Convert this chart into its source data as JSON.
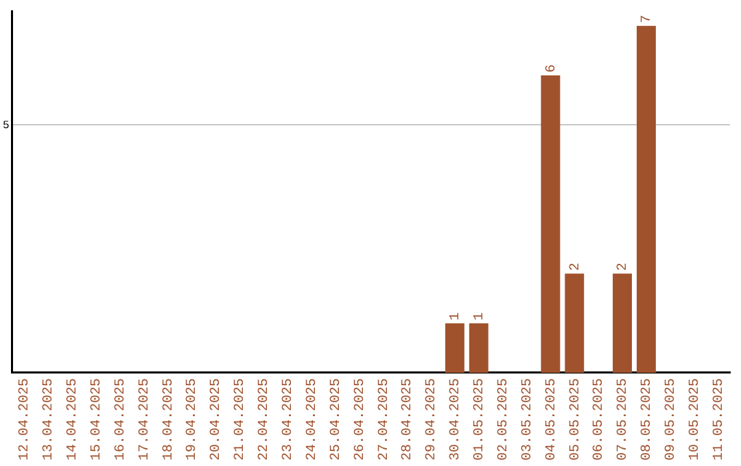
{
  "chart_data": {
    "type": "bar",
    "categories": [
      "12.04.2025",
      "13.04.2025",
      "14.04.2025",
      "15.04.2025",
      "16.04.2025",
      "17.04.2025",
      "18.04.2025",
      "19.04.2025",
      "20.04.2025",
      "21.04.2025",
      "22.04.2025",
      "23.04.2025",
      "24.04.2025",
      "25.04.2025",
      "26.04.2025",
      "27.04.2025",
      "28.04.2025",
      "29.04.2025",
      "30.04.2025",
      "01.05.2025",
      "02.05.2025",
      "03.05.2025",
      "04.05.2025",
      "05.05.2025",
      "06.05.2025",
      "07.05.2025",
      "08.05.2025",
      "09.05.2025",
      "10.05.2025",
      "11.05.2025"
    ],
    "values": [
      null,
      null,
      null,
      null,
      null,
      null,
      null,
      null,
      null,
      null,
      null,
      null,
      null,
      null,
      null,
      null,
      null,
      null,
      1,
      1,
      null,
      null,
      6,
      2,
      null,
      2,
      7,
      null,
      null,
      null
    ],
    "color": "#a0522d",
    "ylim": [
      0,
      7.3
    ],
    "yticks": [
      5
    ],
    "grid": "y",
    "legend": false,
    "data_labels": true
  }
}
